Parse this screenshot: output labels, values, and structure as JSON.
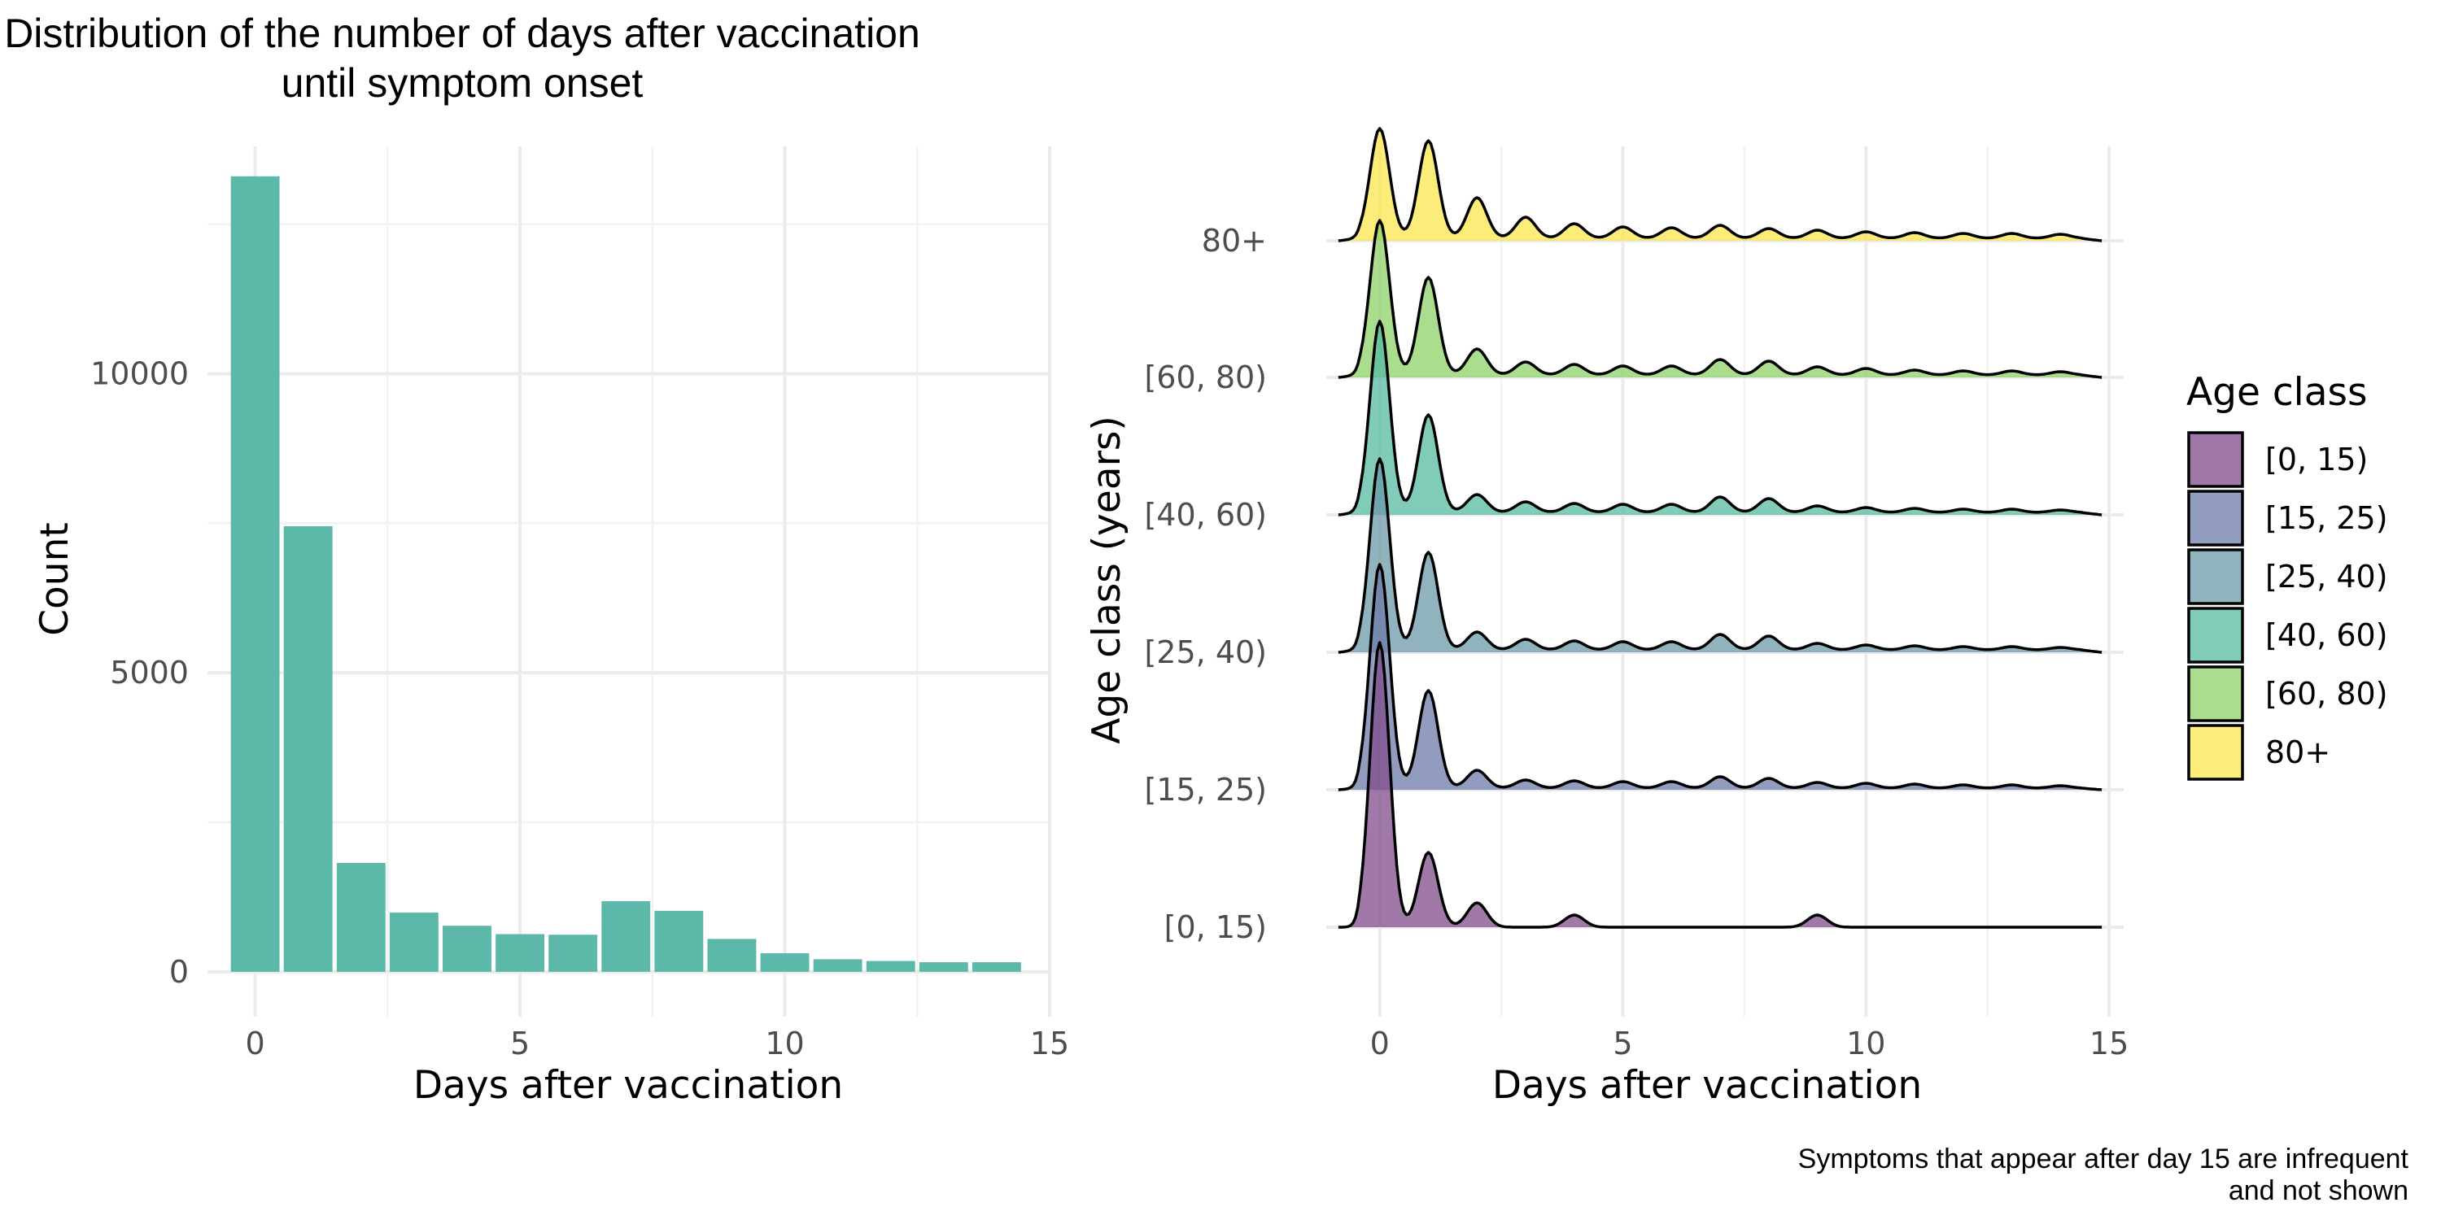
{
  "title_lines": [
    "Distribution of the number of days after vaccination",
    "until symptom onset"
  ],
  "caption_lines": [
    "Symptoms that appear after day 15 are infrequent",
    "and not shown"
  ],
  "chart_data": [
    {
      "type": "bar",
      "title": "Distribution of the number of days after vaccination until symptom onset",
      "xlabel": "Days after vaccination",
      "ylabel": "Count",
      "x": [
        0,
        1,
        2,
        3,
        4,
        5,
        6,
        7,
        8,
        9,
        10,
        11,
        12,
        13,
        14
      ],
      "values": [
        13300,
        7450,
        1820,
        990,
        770,
        630,
        620,
        1180,
        1020,
        550,
        310,
        210,
        180,
        160,
        160
      ],
      "xlim": [
        -0.9,
        15
      ],
      "ylim": [
        -750,
        13800
      ],
      "x_ticks": [
        0,
        5,
        10,
        15
      ],
      "y_ticks": [
        0,
        5000,
        10000
      ],
      "bar_color": "#5cb8a8",
      "grid": true
    },
    {
      "type": "area",
      "subtype": "ridgeline",
      "xlabel": "Days after vaccination",
      "ylabel": "Age class (years)",
      "xlim": [
        -1.1,
        15.3
      ],
      "x_ticks": [
        0,
        5,
        10,
        15
      ],
      "categories": [
        "[0, 15)",
        "[15, 25)",
        "[25, 40)",
        "[40, 60)",
        "[60, 80)",
        "80+"
      ],
      "legend_title": "Age class",
      "legend_position": "right",
      "grid": true,
      "series": [
        {
          "name": "[0, 15)",
          "color": "#804c8c",
          "peaks": [
            [
              0,
              3.5
            ],
            [
              1,
              0.92
            ],
            [
              2,
              0.3
            ],
            [
              4,
              0.15
            ],
            [
              9,
              0.15
            ]
          ],
          "base": 0
        },
        {
          "name": "[15, 25)",
          "color": "#6e7ba8",
          "peaks": [
            [
              0,
              2.75
            ],
            [
              1,
              1.2
            ],
            [
              2,
              0.22
            ],
            [
              3,
              0.1
            ],
            [
              4,
              0.09
            ],
            [
              5,
              0.08
            ],
            [
              6,
              0.08
            ],
            [
              7,
              0.14
            ],
            [
              8,
              0.12
            ],
            [
              9,
              0.07
            ],
            [
              10,
              0.06
            ],
            [
              11,
              0.05
            ],
            [
              12,
              0.04
            ],
            [
              13,
              0.04
            ],
            [
              14,
              0.03
            ]
          ],
          "base": 0.02
        },
        {
          "name": "[25, 40)",
          "color": "#6b9aa8",
          "peaks": [
            [
              0,
              2.35
            ],
            [
              1,
              1.2
            ],
            [
              2,
              0.22
            ],
            [
              3,
              0.13
            ],
            [
              4,
              0.11
            ],
            [
              5,
              0.1
            ],
            [
              6,
              0.1
            ],
            [
              7,
              0.19
            ],
            [
              8,
              0.17
            ],
            [
              9,
              0.08
            ],
            [
              10,
              0.06
            ],
            [
              11,
              0.05
            ],
            [
              12,
              0.04
            ],
            [
              13,
              0.04
            ],
            [
              14,
              0.03
            ]
          ],
          "base": 0.03
        },
        {
          "name": "[40, 60)",
          "color": "#55bba1",
          "peaks": [
            [
              0,
              2.35
            ],
            [
              1,
              1.2
            ],
            [
              2,
              0.22
            ],
            [
              3,
              0.13
            ],
            [
              4,
              0.11
            ],
            [
              5,
              0.1
            ],
            [
              6,
              0.1
            ],
            [
              7,
              0.19
            ],
            [
              8,
              0.17
            ],
            [
              9,
              0.08
            ],
            [
              10,
              0.06
            ],
            [
              11,
              0.05
            ],
            [
              12,
              0.04
            ],
            [
              13,
              0.04
            ],
            [
              14,
              0.03
            ]
          ],
          "base": 0.03
        },
        {
          "name": "[60, 80)",
          "color": "#8fd16a",
          "peaks": [
            [
              0,
              1.9
            ],
            [
              1,
              1.2
            ],
            [
              2,
              0.32
            ],
            [
              3,
              0.16
            ],
            [
              4,
              0.13
            ],
            [
              5,
              0.11
            ],
            [
              6,
              0.11
            ],
            [
              7,
              0.19
            ],
            [
              8,
              0.17
            ],
            [
              9,
              0.1
            ],
            [
              10,
              0.08
            ],
            [
              11,
              0.06
            ],
            [
              12,
              0.05
            ],
            [
              13,
              0.05
            ],
            [
              14,
              0.04
            ]
          ],
          "base": 0.03
        },
        {
          "name": "80+",
          "color": "#fbe74f",
          "peaks": [
            [
              0,
              1.35
            ],
            [
              1,
              1.2
            ],
            [
              2,
              0.5
            ],
            [
              3,
              0.26
            ],
            [
              4,
              0.18
            ],
            [
              5,
              0.14
            ],
            [
              6,
              0.13
            ],
            [
              7,
              0.16
            ],
            [
              8,
              0.12
            ],
            [
              9,
              0.1
            ],
            [
              10,
              0.08
            ],
            [
              11,
              0.07
            ],
            [
              12,
              0.06
            ],
            [
              13,
              0.06
            ],
            [
              14,
              0.05
            ]
          ],
          "base": 0.03
        }
      ]
    }
  ]
}
